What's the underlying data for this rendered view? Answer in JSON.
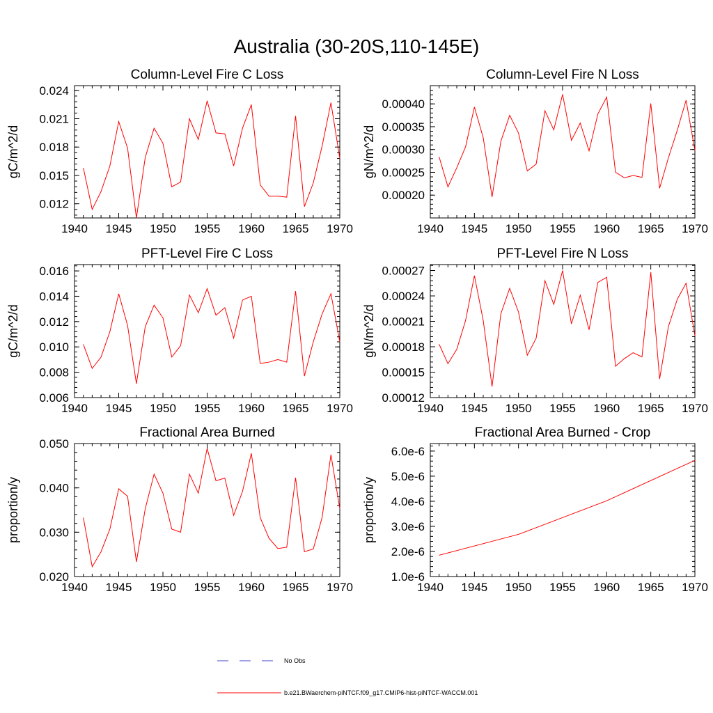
{
  "figure": {
    "title": "Australia (30-20S,110-145E)"
  },
  "legend": {
    "entries": [
      {
        "label": "No Obs",
        "color": "#4444cc",
        "style": "dashed"
      },
      {
        "label": "b.e21.BWaerchem-piNTCF.f09_g17.CMIP6-hist-piNTCF-WACCM.001",
        "color": "#ff0000",
        "style": "solid"
      }
    ]
  },
  "colors": {
    "series": "#ff0000",
    "axis": "#000000",
    "obs": "#4444cc"
  },
  "chart_data": [
    {
      "type": "line",
      "title": "Column-Level Fire C Loss",
      "ylabel": "gC/m^2/d",
      "xlim": [
        1940,
        1970
      ],
      "ylim": [
        0.0105,
        0.0245
      ],
      "xticks": [
        1940,
        1945,
        1950,
        1955,
        1960,
        1965,
        1970
      ],
      "yticks": [
        0.012,
        0.015,
        0.018,
        0.021,
        0.024
      ],
      "ytick_labels": [
        "0.012",
        "0.015",
        "0.018",
        "0.021",
        "0.024"
      ],
      "yminor_step": 0.0006,
      "series": [
        {
          "x": [
            1941,
            1942,
            1943,
            1944,
            1945,
            1946,
            1947,
            1948,
            1949,
            1950,
            1951,
            1952,
            1953,
            1954,
            1955,
            1956,
            1957,
            1958,
            1959,
            1960,
            1961,
            1962,
            1963,
            1964,
            1965,
            1966,
            1967,
            1968,
            1969,
            1970
          ],
          "values": [
            0.0158,
            0.0114,
            0.0133,
            0.016,
            0.0207,
            0.0179,
            0.0105,
            0.0169,
            0.02,
            0.0184,
            0.0138,
            0.0143,
            0.021,
            0.0188,
            0.0229,
            0.0195,
            0.0194,
            0.016,
            0.02,
            0.0225,
            0.014,
            0.0128,
            0.0128,
            0.0127,
            0.0213,
            0.0117,
            0.0142,
            0.0181,
            0.0227,
            0.0168
          ]
        }
      ]
    },
    {
      "type": "line",
      "title": "Column-Level Fire N Loss",
      "ylabel": "gN/m^2/d",
      "xlim": [
        1940,
        1970
      ],
      "ylim": [
        0.00015,
        0.00044
      ],
      "xticks": [
        1940,
        1945,
        1950,
        1955,
        1960,
        1965,
        1970
      ],
      "yticks": [
        0.0002,
        0.00025,
        0.0003,
        0.00035,
        0.0004
      ],
      "ytick_labels": [
        "0.00020",
        "0.00025",
        "0.00030",
        "0.00035",
        "0.00040"
      ],
      "yminor_step": 1e-05,
      "series": [
        {
          "x": [
            1941,
            1942,
            1943,
            1944,
            1945,
            1946,
            1947,
            1948,
            1949,
            1950,
            1951,
            1952,
            1953,
            1954,
            1955,
            1956,
            1957,
            1958,
            1959,
            1960,
            1961,
            1962,
            1963,
            1964,
            1965,
            1966,
            1967,
            1968,
            1969,
            1970
          ],
          "values": [
            0.000284,
            0.000218,
            0.00026,
            0.000306,
            0.000393,
            0.000326,
            0.000196,
            0.000318,
            0.000375,
            0.000336,
            0.000253,
            0.000268,
            0.000385,
            0.000343,
            0.000421,
            0.00032,
            0.000358,
            0.000297,
            0.000378,
            0.000415,
            0.00025,
            0.000238,
            0.000243,
            0.000239,
            0.000401,
            0.000215,
            0.000282,
            0.000342,
            0.000408,
            0.000298
          ]
        }
      ]
    },
    {
      "type": "line",
      "title": "PFT-Level Fire C Loss",
      "ylabel": "gC/m^2/d",
      "xlim": [
        1940,
        1970
      ],
      "ylim": [
        0.006,
        0.0165
      ],
      "xticks": [
        1940,
        1945,
        1950,
        1955,
        1960,
        1965,
        1970
      ],
      "yticks": [
        0.006,
        0.008,
        0.01,
        0.012,
        0.014,
        0.016
      ],
      "ytick_labels": [
        "0.006",
        "0.008",
        "0.010",
        "0.012",
        "0.014",
        "0.016"
      ],
      "yminor_step": 0.0004,
      "series": [
        {
          "x": [
            1941,
            1942,
            1943,
            1944,
            1945,
            1946,
            1947,
            1948,
            1949,
            1950,
            1951,
            1952,
            1953,
            1954,
            1955,
            1956,
            1957,
            1958,
            1959,
            1960,
            1961,
            1962,
            1963,
            1964,
            1965,
            1966,
            1967,
            1968,
            1969,
            1970
          ],
          "values": [
            0.0102,
            0.0083,
            0.0092,
            0.0112,
            0.0142,
            0.0117,
            0.0071,
            0.0116,
            0.0133,
            0.0123,
            0.0092,
            0.0101,
            0.0141,
            0.0127,
            0.0146,
            0.0125,
            0.0131,
            0.0107,
            0.0137,
            0.014,
            0.0087,
            0.0088,
            0.009,
            0.0088,
            0.0144,
            0.0077,
            0.0104,
            0.0126,
            0.0142,
            0.0104
          ]
        }
      ]
    },
    {
      "type": "line",
      "title": "PFT-Level Fire N Loss",
      "ylabel": "gN/m^2/d",
      "xlim": [
        1940,
        1970
      ],
      "ylim": [
        0.00012,
        0.000277
      ],
      "xticks": [
        1940,
        1945,
        1950,
        1955,
        1960,
        1965,
        1970
      ],
      "yticks": [
        0.00012,
        0.00015,
        0.00018,
        0.00021,
        0.00024,
        0.00027
      ],
      "ytick_labels": [
        "0.00012",
        "0.00015",
        "0.00018",
        "0.00021",
        "0.00024",
        "0.00027"
      ],
      "yminor_step": 6e-06,
      "series": [
        {
          "x": [
            1941,
            1942,
            1943,
            1944,
            1945,
            1946,
            1947,
            1948,
            1949,
            1950,
            1951,
            1952,
            1953,
            1954,
            1955,
            1956,
            1957,
            1958,
            1959,
            1960,
            1961,
            1962,
            1963,
            1964,
            1965,
            1966,
            1967,
            1968,
            1969,
            1970
          ],
          "values": [
            0.000183,
            0.00016,
            0.000177,
            0.000211,
            0.000264,
            0.000211,
            0.000133,
            0.000219,
            0.000249,
            0.000221,
            0.00017,
            0.00019,
            0.000258,
            0.00023,
            0.00027,
            0.000207,
            0.000241,
            0.0002,
            0.000256,
            0.000262,
            0.000157,
            0.000166,
            0.000173,
            0.000168,
            0.000268,
            0.000142,
            0.000204,
            0.000236,
            0.000255,
            0.000193
          ]
        }
      ]
    },
    {
      "type": "line",
      "title": "Fractional Area Burned",
      "ylabel": "proportion/y",
      "xlim": [
        1940,
        1970
      ],
      "ylim": [
        0.02,
        0.05
      ],
      "xticks": [
        1940,
        1945,
        1950,
        1955,
        1960,
        1965,
        1970
      ],
      "yticks": [
        0.02,
        0.03,
        0.04,
        0.05
      ],
      "ytick_labels": [
        "0.020",
        "0.030",
        "0.040",
        "0.050"
      ],
      "yminor_step": 0.002,
      "series": [
        {
          "x": [
            1941,
            1942,
            1943,
            1944,
            1945,
            1946,
            1947,
            1948,
            1949,
            1950,
            1951,
            1952,
            1953,
            1954,
            1955,
            1956,
            1957,
            1958,
            1959,
            1960,
            1961,
            1962,
            1963,
            1964,
            1965,
            1966,
            1967,
            1968,
            1969,
            1970
          ],
          "values": [
            0.0333,
            0.0222,
            0.0256,
            0.0307,
            0.0398,
            0.0381,
            0.0233,
            0.0353,
            0.0431,
            0.0388,
            0.0307,
            0.03,
            0.0431,
            0.0388,
            0.0489,
            0.0416,
            0.0422,
            0.0338,
            0.0392,
            0.0478,
            0.0333,
            0.0286,
            0.0263,
            0.0266,
            0.0423,
            0.0256,
            0.0262,
            0.0333,
            0.0475,
            0.0353
          ]
        }
      ]
    },
    {
      "type": "line",
      "title": "Fractional Area Burned - Crop",
      "ylabel": "proportion/y",
      "xlim": [
        1940,
        1970
      ],
      "ylim": [
        1e-06,
        6.3e-06
      ],
      "xticks": [
        1940,
        1945,
        1950,
        1955,
        1960,
        1965,
        1970
      ],
      "yticks": [
        1e-06,
        2e-06,
        3e-06,
        4e-06,
        5e-06,
        6e-06
      ],
      "ytick_labels": [
        "1.0e-6",
        "2.0e-6",
        "3.0e-6",
        "4.0e-6",
        "5.0e-6",
        "6.0e-6"
      ],
      "yminor_step": 2e-07,
      "series": [
        {
          "x": [
            1941,
            1950,
            1960,
            1970
          ],
          "values": [
            1.85e-06,
            2.68e-06,
            4.02e-06,
            5.63e-06
          ]
        }
      ]
    }
  ]
}
